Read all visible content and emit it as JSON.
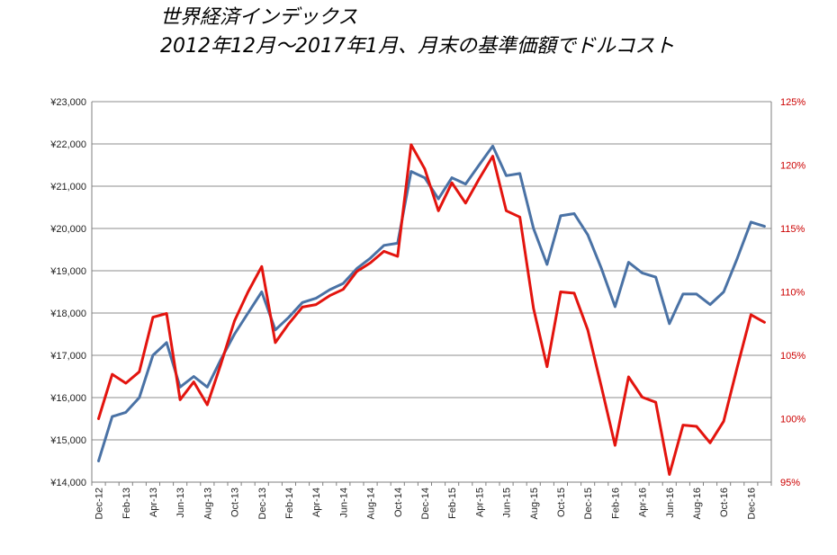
{
  "chart_data": {
    "type": "line",
    "title": "世界経済インデックス",
    "subtitle": "2012年12月～2017年1月、月末の基準価額でドルコスト",
    "x": [
      "Dec-12",
      "Jan-13",
      "Feb-13",
      "Mar-13",
      "Apr-13",
      "May-13",
      "Jun-13",
      "Jul-13",
      "Aug-13",
      "Sep-13",
      "Oct-13",
      "Nov-13",
      "Dec-13",
      "Jan-14",
      "Feb-14",
      "Mar-14",
      "Apr-14",
      "May-14",
      "Jun-14",
      "Jul-14",
      "Aug-14",
      "Sep-14",
      "Oct-14",
      "Nov-14",
      "Dec-14",
      "Jan-15",
      "Feb-15",
      "Mar-15",
      "Apr-15",
      "May-15",
      "Jun-15",
      "Jul-15",
      "Aug-15",
      "Sep-15",
      "Oct-15",
      "Nov-15",
      "Dec-15",
      "Jan-16",
      "Feb-16",
      "Mar-16",
      "Apr-16",
      "May-16",
      "Jun-16",
      "Jul-16",
      "Aug-16",
      "Sep-16",
      "Oct-16",
      "Nov-16",
      "Dec-16",
      "Jan-17"
    ],
    "x_tick_labels": [
      "Dec-12",
      "Feb-13",
      "Apr-13",
      "Jun-13",
      "Aug-13",
      "Oct-13",
      "Dec-13",
      "Feb-14",
      "Apr-14",
      "Jun-14",
      "Aug-14",
      "Oct-14",
      "Dec-14",
      "Feb-15",
      "Apr-15",
      "Jun-15",
      "Aug-15",
      "Oct-15",
      "Dec-15",
      "Feb-16",
      "Apr-16",
      "Jun-16",
      "Aug-16",
      "Oct-16",
      "Dec-16"
    ],
    "y_left": {
      "ylim": [
        14000,
        23000
      ],
      "step": 1000,
      "tick_labels": [
        "¥14,000",
        "¥15,000",
        "¥16,000",
        "¥17,000",
        "¥18,000",
        "¥19,000",
        "¥20,000",
        "¥21,000",
        "¥22,000",
        "¥23,000"
      ]
    },
    "y_right": {
      "ylim": [
        95,
        125
      ],
      "step": 5,
      "tick_labels": [
        "95%",
        "100%",
        "105%",
        "110%",
        "115%",
        "120%",
        "125%"
      ]
    },
    "grid": true,
    "legend": "none",
    "series": [
      {
        "axis": "left",
        "color": "#4a72a5",
        "values": [
          14500,
          15550,
          15650,
          16000,
          17000,
          17300,
          16250,
          16500,
          16250,
          16900,
          17500,
          18000,
          18500,
          17600,
          17900,
          18250,
          18350,
          18550,
          18700,
          19050,
          19300,
          19600,
          19650,
          21350,
          21200,
          20700,
          21200,
          21050,
          21500,
          21950,
          21250,
          21300,
          20000,
          19150,
          20300,
          20350,
          19850,
          19050,
          18150,
          19200,
          18950,
          18850,
          17750,
          18450,
          18450,
          18200,
          18500,
          19300,
          20150,
          20050
        ]
      },
      {
        "axis": "right",
        "color": "#e3140e",
        "values": [
          100.0,
          103.5,
          102.8,
          103.7,
          108.0,
          108.3,
          101.5,
          102.9,
          101.1,
          104.3,
          107.7,
          110.0,
          112.0,
          106.0,
          107.5,
          108.8,
          109.0,
          109.7,
          110.2,
          111.6,
          112.3,
          113.2,
          112.8,
          121.6,
          119.7,
          116.4,
          118.6,
          117.0,
          118.9,
          120.7,
          116.4,
          115.9,
          108.7,
          104.1,
          110.0,
          109.9,
          107.0,
          102.5,
          97.9,
          103.3,
          101.7,
          101.3,
          95.6,
          99.5,
          99.4,
          98.1,
          99.8,
          104.1,
          108.2,
          107.6
        ]
      }
    ]
  }
}
